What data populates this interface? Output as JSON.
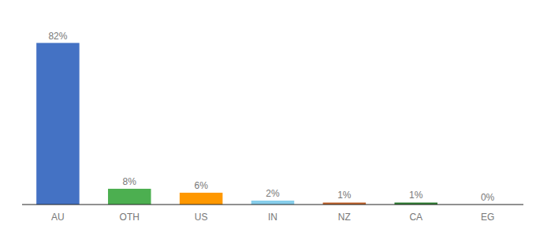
{
  "chart_data": {
    "type": "bar",
    "categories": [
      "AU",
      "OTH",
      "US",
      "IN",
      "NZ",
      "CA",
      "EG"
    ],
    "values": [
      82,
      8,
      6,
      2,
      1,
      1,
      0
    ],
    "value_labels": [
      "82%",
      "8%",
      "6%",
      "2%",
      "1%",
      "1%",
      "0%"
    ],
    "colors": [
      "#4472c4",
      "#4caf50",
      "#ff9800",
      "#87ceeb",
      "#c0622a",
      "#2e7d32",
      "#ffffff"
    ],
    "ylim": [
      0,
      95
    ],
    "data_labels": true,
    "tick_labels": "x",
    "grid": false
  }
}
